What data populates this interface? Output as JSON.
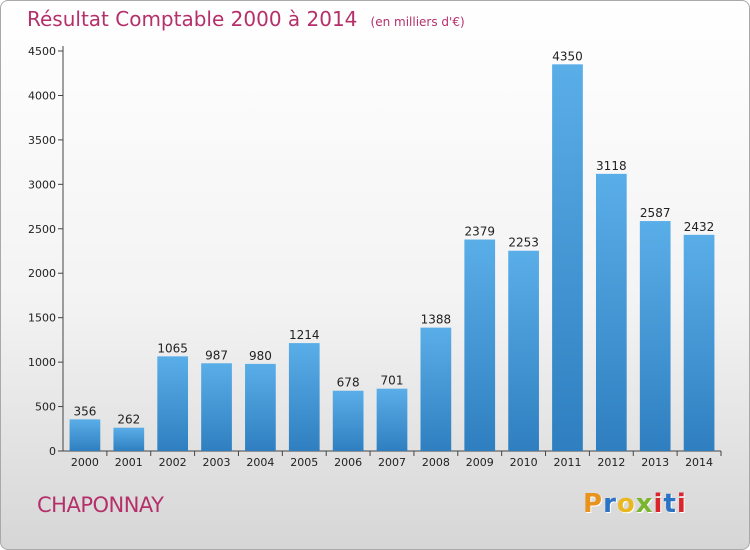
{
  "header": {
    "title": "Résultat Comptable 2000 à 2014",
    "unit": "(en milliers d'€)"
  },
  "footer": {
    "town": "CHAPONNAY",
    "brand_letters": [
      "P",
      "r",
      "o",
      "x",
      "i",
      "t",
      "i"
    ],
    "brand_colors": [
      "#e8931e",
      "#2b73c4",
      "#e8b81e",
      "#7ab52f",
      "#d8262c",
      "#2b73c4",
      "#d8262c"
    ]
  },
  "colors": {
    "bar_light": "#5aaee8",
    "bar_dark": "#2f7fc0",
    "title": "#b5306a",
    "axis": "#444444"
  },
  "chart_data": {
    "type": "bar",
    "title": "Résultat Comptable 2000 à 2014",
    "subtitle": "(en milliers d'€)",
    "xlabel": "",
    "ylabel": "",
    "categories": [
      "2000",
      "2001",
      "2002",
      "2003",
      "2004",
      "2005",
      "2006",
      "2007",
      "2008",
      "2009",
      "2010",
      "2011",
      "2012",
      "2013",
      "2014"
    ],
    "values": [
      356,
      262,
      1065,
      987,
      980,
      1214,
      678,
      701,
      1388,
      2379,
      2253,
      4350,
      3118,
      2587,
      2432
    ],
    "ylim": [
      0,
      4500
    ],
    "yticks": [
      0,
      500,
      1000,
      1500,
      2000,
      2500,
      3000,
      3500,
      4000,
      4500
    ],
    "grid": false,
    "data_labels": true
  }
}
